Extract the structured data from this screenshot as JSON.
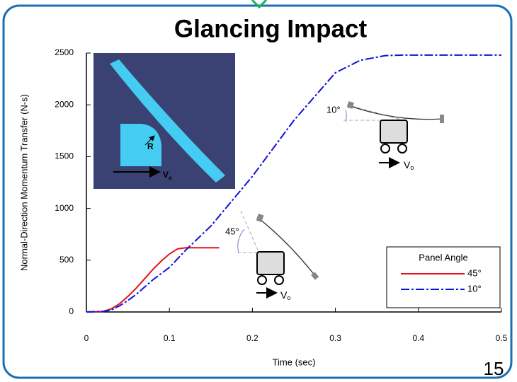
{
  "page_number": 15,
  "chart_data": {
    "type": "line",
    "title": "Glancing Impact",
    "xlabel": "Time (sec)",
    "ylabel": "Normal-Direction Momentum Transfer (N-s)",
    "xlim": [
      0,
      0.5
    ],
    "ylim": [
      0,
      2500
    ],
    "xticks": [
      0,
      0.1,
      0.2,
      0.3,
      0.4,
      {
        "value": 0.5,
        "label": "0.5"
      }
    ],
    "yticks": [
      0,
      500,
      1000,
      1500,
      2000,
      2500
    ],
    "legend_title": "Panel Angle",
    "legend_position": "lower right",
    "series": [
      {
        "name": "45°",
        "color": "#e8101a",
        "style": "solid",
        "x": [
          0,
          0.02,
          0.03,
          0.04,
          0.05,
          0.06,
          0.07,
          0.08,
          0.09,
          0.1,
          0.11,
          0.12,
          0.13,
          0.14,
          0.15,
          0.16
        ],
        "values": [
          0,
          5,
          30,
          80,
          150,
          230,
          320,
          410,
          490,
          560,
          610,
          620,
          620,
          620,
          620,
          620
        ]
      },
      {
        "name": "10°",
        "color": "#1010d8",
        "style": "dashdot",
        "x": [
          0,
          0.02,
          0.03,
          0.04,
          0.05,
          0.06,
          0.07,
          0.08,
          0.09,
          0.1,
          0.12,
          0.15,
          0.2,
          0.25,
          0.3,
          0.33,
          0.36,
          0.38,
          0.5
        ],
        "values": [
          0,
          5,
          20,
          60,
          110,
          170,
          240,
          310,
          370,
          430,
          600,
          830,
          1310,
          1850,
          2310,
          2430,
          2475,
          2480,
          2480
        ]
      }
    ],
    "annotations": {
      "inset_radius": "R",
      "inset_velocity": {
        "label": "V",
        "sub": "o"
      },
      "angle_10": "10°",
      "velocity_10": {
        "label": "V",
        "sub": "o"
      },
      "angle_45": "45°",
      "velocity_45": {
        "label": "V",
        "sub": "o"
      }
    }
  }
}
